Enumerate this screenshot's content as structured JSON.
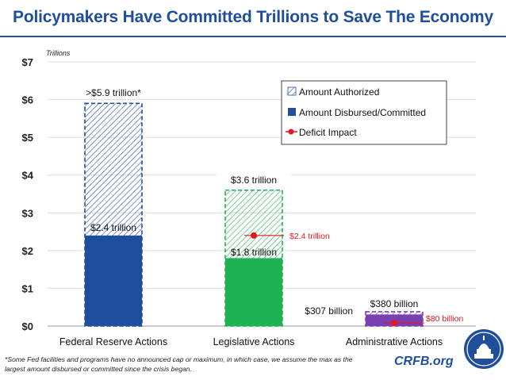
{
  "title": "Policymakers Have Committed Trillions to Save The Economy",
  "footnote": "*Some Fed facilities and programs have no announced cap or maximum, in which case, we assume the max as the largest amount disbursed or committed since the crisis began.",
  "brand": "CRFB.org",
  "colors": {
    "title": "#1f4e9d",
    "fed": "#1f4e9d",
    "legislative": "#1fb254",
    "administrative": "#7a3fb3",
    "deficit": "#e0191f"
  },
  "chart_data": {
    "type": "bar",
    "ylabel": "Trillions",
    "ylim": [
      0,
      7
    ],
    "yticks": [
      "$0",
      "$1",
      "$2",
      "$3",
      "$4",
      "$5",
      "$6",
      "$7"
    ],
    "categories": [
      "Federal Reserve Actions",
      "Legislative Actions",
      "Administrative Actions"
    ],
    "series": [
      {
        "name": "Amount Authorized",
        "values": [
          5.9,
          3.6,
          0.38
        ],
        "labels": [
          ">$5.9 trillion*",
          "$3.6 trillion",
          "$380 billion"
        ]
      },
      {
        "name": "Amount Disbursed/Committed",
        "values": [
          2.4,
          1.8,
          0.307
        ],
        "labels": [
          "$2.4 trillion",
          "$1.8 trillion",
          "$307 billion"
        ]
      },
      {
        "name": "Deficit Impact",
        "values": [
          null,
          2.4,
          0.08
        ],
        "labels": [
          "",
          "$2.4 trillion",
          "$80 billion"
        ]
      }
    ],
    "legend_position": "top-right",
    "grid": true
  }
}
